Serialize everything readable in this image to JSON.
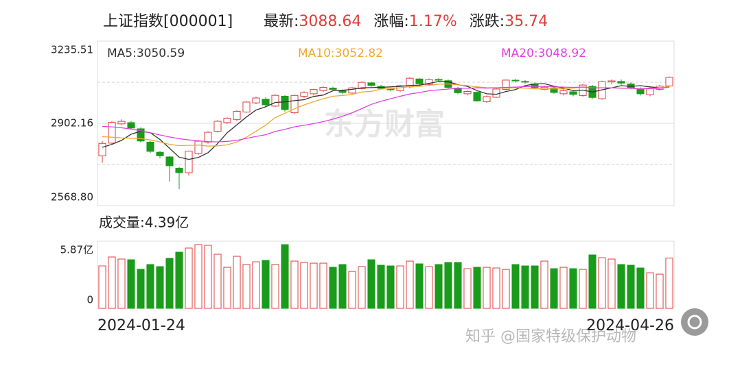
{
  "chart_data": {
    "type": "candlestick",
    "title": "上证指数[000001]",
    "header": [
      {
        "label": "最新:",
        "text": "3088.64"
      },
      {
        "label": "涨幅:",
        "text": "1.17%"
      },
      {
        "label": "涨跌:",
        "text": "35.74"
      }
    ],
    "watermark": "东方财富",
    "up_color": "#e03c3c",
    "down_color": "#1b9b1b",
    "categories": [
      "2024-01-24",
      null,
      null,
      null,
      null,
      null,
      null,
      null,
      null,
      null,
      null,
      null,
      null,
      null,
      null,
      null,
      null,
      null,
      null,
      null,
      null,
      null,
      null,
      null,
      null,
      null,
      null,
      null,
      null,
      null,
      null,
      null,
      null,
      null,
      null,
      null,
      null,
      null,
      null,
      null,
      null,
      null,
      null,
      null,
      null,
      null,
      null,
      null,
      null,
      null,
      null,
      null,
      null,
      null,
      null,
      null,
      null,
      null,
      null,
      "2024-04-26"
    ],
    "open": [
      2770,
      2822,
      2900,
      2905,
      2880,
      2826,
      2785,
      2766,
      2720,
      2702,
      2780,
      2826,
      2870,
      2905,
      2918,
      2948,
      2985,
      3000,
      2972,
      3012,
      2945,
      3012,
      3022,
      3035,
      3045,
      3036,
      3025,
      3043,
      3066,
      3052,
      3042,
      3035,
      3050,
      3082,
      3060,
      3080,
      3075,
      3045,
      3022,
      3028,
      2990,
      3008,
      3040,
      3077,
      3072,
      3062,
      3040,
      3045,
      3022,
      3030,
      3015,
      3052,
      3002,
      3070,
      3072,
      3062,
      3042,
      3018,
      3040,
      3054
    ],
    "high": [
      2830,
      2912,
      2918,
      2912,
      2886,
      2830,
      2790,
      2770,
      2725,
      2792,
      2835,
      2870,
      2915,
      2928,
      2955,
      2992,
      3010,
      3008,
      3020,
      3016,
      3018,
      3032,
      3042,
      3052,
      3050,
      3040,
      3050,
      3072,
      3070,
      3058,
      3046,
      3058,
      3090,
      3086,
      3084,
      3085,
      3080,
      3050,
      3035,
      3032,
      3015,
      3045,
      3080,
      3082,
      3078,
      3068,
      3055,
      3050,
      3040,
      3035,
      3062,
      3058,
      3075,
      3080,
      3080,
      3068,
      3048,
      3050,
      3058,
      3092
    ],
    "low": [
      2742,
      2815,
      2895,
      2878,
      2825,
      2782,
      2760,
      2666,
      2635,
      2690,
      2775,
      2820,
      2865,
      2900,
      2912,
      2945,
      2980,
      2970,
      2968,
      2950,
      2940,
      3005,
      3015,
      3030,
      3035,
      3020,
      3020,
      3040,
      3050,
      3040,
      3032,
      3030,
      3045,
      3058,
      3055,
      3072,
      3042,
      3020,
      3015,
      2990,
      2985,
      3005,
      3036,
      3068,
      3062,
      3040,
      3035,
      3022,
      3015,
      3012,
      3010,
      3000,
      2998,
      3060,
      3058,
      3040,
      3015,
      3012,
      3035,
      3050
    ],
    "close": [
      2820.77,
      2906.11,
      2910.22,
      2883.36,
      2830.53,
      2788.55,
      2770.74,
      2730.15,
      2702.19,
      2789.49,
      2829.7,
      2865.9,
      2910.54,
      2922.73,
      2950.96,
      2988.36,
      3004.88,
      2977.02,
      3015.48,
      2957.85,
      3015.17,
      3027.02,
      3039.31,
      3047.79,
      3039.93,
      3027.4,
      3046.02,
      3068.46,
      3055.94,
      3043.83,
      3038.23,
      3054.64,
      3084.93,
      3062.76,
      3079.69,
      3077.11,
      3048.03,
      3026.31,
      3031.48,
      2993.14,
      3010.66,
      3041.17,
      3077.38,
      3074.96,
      3069.3,
      3047.05,
      3048.54,
      3027.34,
      3034.25,
      3019.47,
      3057.38,
      3007.07,
      3071.38,
      3074.22,
      3065.26,
      3044.6,
      3021.98,
      3044.82,
      3052.9,
      3088.64
    ],
    "series": [
      {
        "name": "MA5:3050.59",
        "color": "#333333",
        "values": [
          2805,
          2817,
          2833,
          2858,
          2870,
          2864,
          2837,
          2801,
          2765,
          2756,
          2764,
          2783,
          2820,
          2864,
          2896,
          2928,
          2956,
          2969,
          2987,
          2989,
          2994,
          2998,
          3011,
          3017,
          3034,
          3036,
          3040,
          3046,
          3047,
          3048,
          3050,
          3052,
          3056,
          3057,
          3064,
          3072,
          3071,
          3059,
          3052,
          3035,
          3022,
          3020,
          3031,
          3039,
          3055,
          3062,
          3063,
          3053,
          3045,
          3035,
          3037,
          3029,
          3038,
          3046,
          3055,
          3052,
          3055,
          3050,
          3046,
          3050.59
        ]
      },
      {
        "name": "MA10:3052.82",
        "color": "#f0a830",
        "values": [
          2848,
          2846,
          2843,
          2842,
          2840,
          2835,
          2827,
          2817,
          2812,
          2813,
          2814,
          2810,
          2811,
          2815,
          2826,
          2846,
          2870,
          2895,
          2926,
          2943,
          2961,
          2977,
          2990,
          3002,
          3012,
          3015,
          3019,
          3029,
          3032,
          3041,
          3043,
          3046,
          3051,
          3052,
          3056,
          3061,
          3062,
          3058,
          3055,
          3050,
          3047,
          3046,
          3045,
          3046,
          3045,
          3042,
          3042,
          3042,
          3042,
          3045,
          3050,
          3046,
          3046,
          3046,
          3045,
          3045,
          3042,
          3044,
          3046,
          3052.82
        ]
      },
      {
        "name": "MA20:3048.92",
        "color": "#e040e0",
        "values": [
          2890,
          2888,
          2884,
          2879,
          2872,
          2864,
          2855,
          2847,
          2840,
          2835,
          2831,
          2828,
          2827,
          2829,
          2833,
          2841,
          2849,
          2856,
          2869,
          2878,
          2888,
          2894,
          2901,
          2909,
          2919,
          2931,
          2945,
          2962,
          2979,
          2992,
          3002,
          3012,
          3021,
          3027,
          3034,
          3038,
          3041,
          3044,
          3044,
          3046,
          3045,
          3046,
          3048,
          3049,
          3051,
          3052,
          3052,
          3050,
          3049,
          3048,
          3049,
          3046,
          3046,
          3046,
          3045,
          3044,
          3042,
          3043,
          3044,
          3048.92
        ]
      }
    ],
    "ylim": [
      2568.8,
      3235.51
    ],
    "yticks": [
      {
        "value": 2568.8,
        "label": "2568.80"
      },
      2902.16,
      3235.51
    ],
    "minor_gridlines": [
      2735.48,
      3068.84
    ],
    "volume": {
      "title": "成交量:4.39亿",
      "values": [
        3.71,
        4.49,
        4.31,
        4.25,
        3.41,
        3.83,
        3.65,
        4.37,
        4.91,
        5.27,
        5.57,
        5.51,
        4.73,
        3.59,
        4.55,
        3.83,
        4.07,
        4.19,
        3.83,
        5.57,
        4.13,
        4.01,
        3.95,
        3.95,
        3.59,
        3.83,
        3.23,
        3.65,
        4.25,
        3.77,
        3.71,
        3.71,
        4.13,
        3.89,
        3.65,
        3.83,
        4.01,
        4.01,
        3.47,
        3.59,
        3.59,
        3.53,
        3.41,
        3.83,
        3.71,
        3.71,
        4.13,
        3.47,
        3.59,
        3.47,
        3.41,
        4.67,
        4.43,
        4.31,
        3.83,
        3.77,
        3.53,
        3.11,
        2.99,
        4.39
      ],
      "ylim": [
        0,
        5.87
      ],
      "yticks": [
        0,
        {
          "value": 5.87,
          "label": "5.87亿"
        }
      ]
    },
    "credit": "知乎 @国家特级保护动物"
  }
}
